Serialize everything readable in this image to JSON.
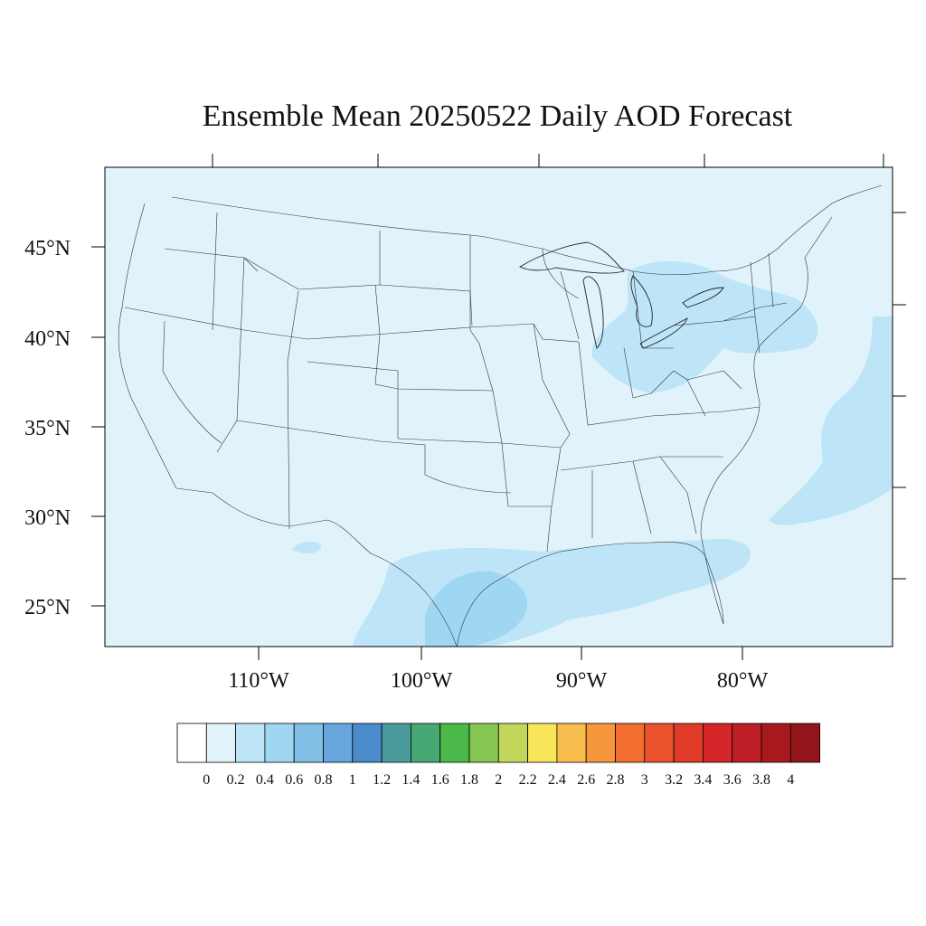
{
  "title": "Ensemble Mean 20250522 Daily AOD Forecast",
  "lat_labels": [
    "45°N",
    "40°N",
    "35°N",
    "30°N",
    "25°N"
  ],
  "lon_labels": [
    "110°W",
    "100°W",
    "90°W",
    "80°W"
  ],
  "colorbar": {
    "labels": [
      "0",
      "0.2",
      "0.4",
      "0.6",
      "0.8",
      "1",
      "1.2",
      "1.4",
      "1.6",
      "1.8",
      "2",
      "2.2",
      "2.4",
      "2.6",
      "2.8",
      "3",
      "3.2",
      "3.4",
      "3.6",
      "3.8",
      "4"
    ],
    "colors": [
      "#ffffff",
      "#e0f3fb",
      "#bde5f7",
      "#9fd7f3",
      "#82bfe6",
      "#66a6dc",
      "#4a8bcb",
      "#4a9a9c",
      "#48a874",
      "#4bb84a",
      "#86c651",
      "#c2d65b",
      "#f7e65a",
      "#f8bd4c",
      "#f6963d",
      "#f26e2e",
      "#e9522c",
      "#e03a29",
      "#d42629",
      "#be1e26",
      "#a8191d",
      "#921619"
    ]
  },
  "colors": {
    "background_aod": "#e0f3fb",
    "aod_0_4": "#bde5f7",
    "aod_0_6": "#9fd7f3"
  }
}
